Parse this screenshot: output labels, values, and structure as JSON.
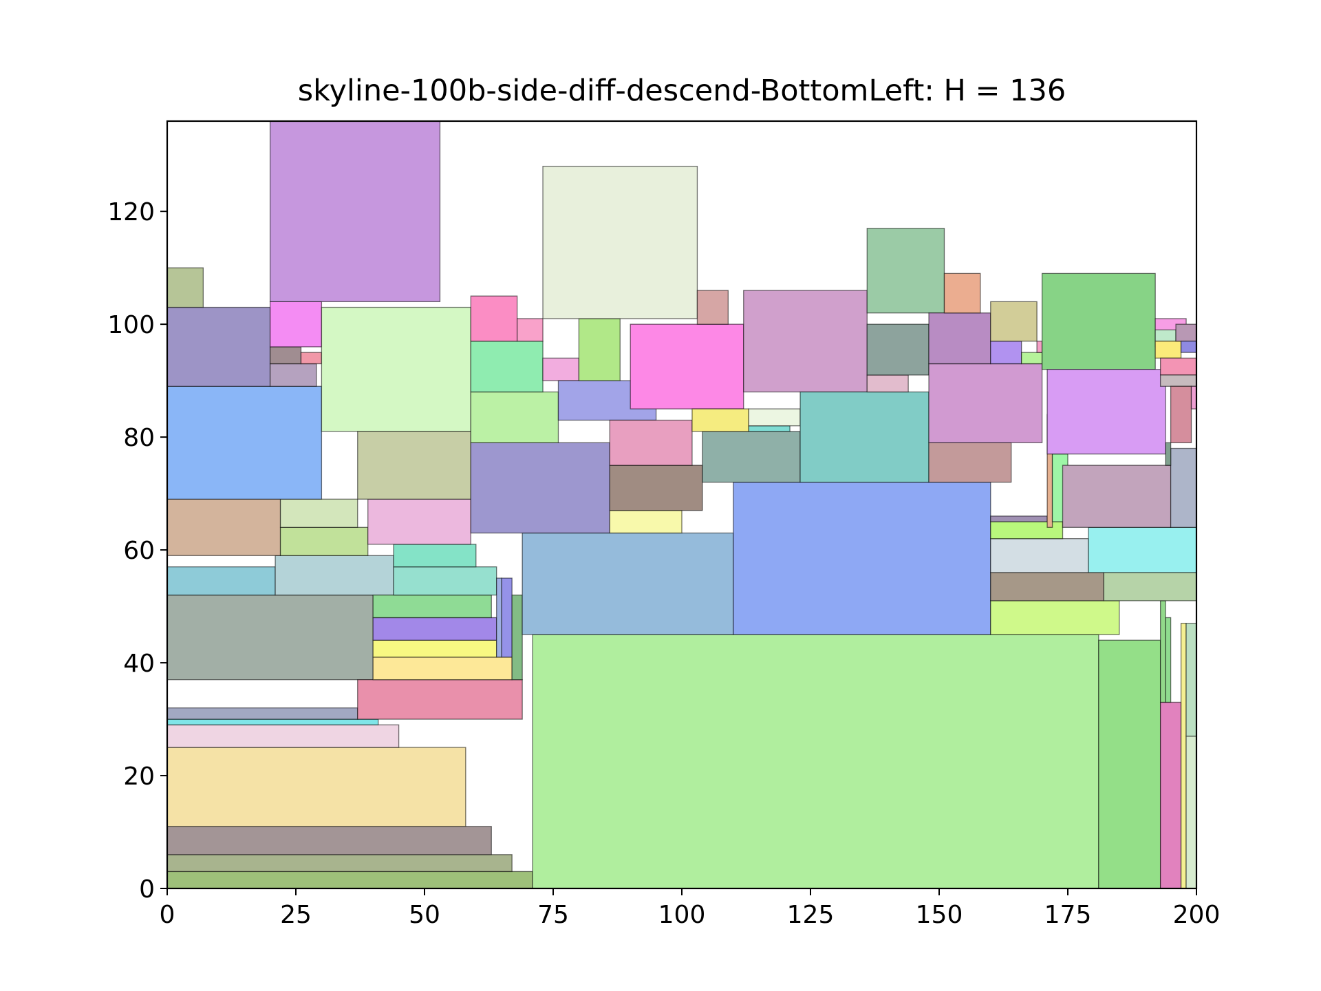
{
  "chart_data": {
    "type": "rectangle-packing",
    "title": "skyline-100b-side-diff-descend-BottomLeft: H = 136",
    "xlabel": "",
    "ylabel": "",
    "xlim": [
      0,
      200
    ],
    "ylim": [
      0,
      136
    ],
    "x_ticks": [
      0,
      25,
      50,
      75,
      100,
      125,
      150,
      175,
      200
    ],
    "y_ticks": [
      0,
      20,
      40,
      60,
      80,
      100,
      120
    ],
    "rects": [
      {
        "x": 0,
        "y": 0,
        "w": 71,
        "h": 3,
        "color": "#9ec07a"
      },
      {
        "x": 0,
        "y": 3,
        "w": 67,
        "h": 3,
        "color": "#a8b48e"
      },
      {
        "x": 0,
        "y": 6,
        "w": 63,
        "h": 5,
        "color": "#a39596"
      },
      {
        "x": 0,
        "y": 11,
        "w": 58,
        "h": 14,
        "color": "#f5e2a6"
      },
      {
        "x": 0,
        "y": 25,
        "w": 45,
        "h": 4,
        "color": "#efd5e3"
      },
      {
        "x": 0,
        "y": 29,
        "w": 41,
        "h": 1,
        "color": "#7fe5e8"
      },
      {
        "x": 0,
        "y": 30,
        "w": 37,
        "h": 2,
        "color": "#a2a8c2"
      },
      {
        "x": 0,
        "y": 37,
        "w": 40,
        "h": 15,
        "color": "#a2afa6"
      },
      {
        "x": 0,
        "y": 52,
        "w": 21,
        "h": 5,
        "color": "#8ecbd8"
      },
      {
        "x": 21,
        "y": 52,
        "w": 23,
        "h": 7,
        "color": "#b4d3d8"
      },
      {
        "x": 0,
        "y": 59,
        "w": 22,
        "h": 10,
        "color": "#d3b49c"
      },
      {
        "x": 22,
        "y": 59,
        "w": 17,
        "h": 5,
        "color": "#c1e19a"
      },
      {
        "x": 22,
        "y": 64,
        "w": 15,
        "h": 5,
        "color": "#d3e6bb"
      },
      {
        "x": 0,
        "y": 69,
        "w": 30,
        "h": 20,
        "color": "#8ab6f7"
      },
      {
        "x": 0,
        "y": 89,
        "w": 20,
        "h": 14,
        "color": "#9d94c6"
      },
      {
        "x": 0,
        "y": 103,
        "w": 7,
        "h": 7,
        "color": "#b6c597"
      },
      {
        "x": 20,
        "y": 89,
        "w": 9,
        "h": 4,
        "color": "#b5a2bf"
      },
      {
        "x": 20,
        "y": 93,
        "w": 6,
        "h": 3,
        "color": "#a08d91"
      },
      {
        "x": 26,
        "y": 93,
        "w": 4,
        "h": 2,
        "color": "#f198a8"
      },
      {
        "x": 20,
        "y": 96,
        "w": 10,
        "h": 8,
        "color": "#f48cf3"
      },
      {
        "x": 20,
        "y": 104,
        "w": 33,
        "h": 32,
        "color": "#c697de"
      },
      {
        "x": 30,
        "y": 81,
        "w": 29,
        "h": 22,
        "color": "#d4f8c4"
      },
      {
        "x": 37,
        "y": 30,
        "w": 32,
        "h": 7,
        "color": "#e990ab"
      },
      {
        "x": 40,
        "y": 37,
        "w": 27,
        "h": 4,
        "color": "#fde898"
      },
      {
        "x": 40,
        "y": 41,
        "w": 24,
        "h": 3,
        "color": "#f8f882"
      },
      {
        "x": 40,
        "y": 44,
        "w": 24,
        "h": 4,
        "color": "#a288e8"
      },
      {
        "x": 40,
        "y": 48,
        "w": 23,
        "h": 4,
        "color": "#8fdb95"
      },
      {
        "x": 44,
        "y": 52,
        "w": 20,
        "h": 5,
        "color": "#96e0cf"
      },
      {
        "x": 44,
        "y": 57,
        "w": 16,
        "h": 4,
        "color": "#84e3c7"
      },
      {
        "x": 39,
        "y": 61,
        "w": 20,
        "h": 8,
        "color": "#ecb8de"
      },
      {
        "x": 37,
        "y": 69,
        "w": 22,
        "h": 12,
        "color": "#c7cea6"
      },
      {
        "x": 64,
        "y": 41,
        "w": 1,
        "h": 14,
        "color": "#9fb0e3"
      },
      {
        "x": 65,
        "y": 41,
        "w": 2,
        "h": 14,
        "color": "#9592e9"
      },
      {
        "x": 67,
        "y": 37,
        "w": 2,
        "h": 15,
        "color": "#83bc85"
      },
      {
        "x": 71,
        "y": 0,
        "w": 110,
        "h": 45,
        "color": "#b0ee9e"
      },
      {
        "x": 69,
        "y": 45,
        "w": 41,
        "h": 18,
        "color": "#95bbdb"
      },
      {
        "x": 110,
        "y": 45,
        "w": 50,
        "h": 27,
        "color": "#8ea8f4"
      },
      {
        "x": 181,
        "y": 0,
        "w": 12,
        "h": 44,
        "color": "#94df88"
      },
      {
        "x": 193,
        "y": 0,
        "w": 4,
        "h": 33,
        "color": "#e182be"
      },
      {
        "x": 197,
        "y": 0,
        "w": 1,
        "h": 47,
        "color": "#f4f092"
      },
      {
        "x": 198,
        "y": 0,
        "w": 2,
        "h": 27,
        "color": "#d7eccf"
      },
      {
        "x": 198,
        "y": 27,
        "w": 2,
        "h": 20,
        "color": "#bbe0c2"
      },
      {
        "x": 193,
        "y": 33,
        "w": 1,
        "h": 18,
        "color": "#92d98a"
      },
      {
        "x": 194,
        "y": 33,
        "w": 1,
        "h": 15,
        "color": "#8fdc8f"
      },
      {
        "x": 160,
        "y": 45,
        "w": 25,
        "h": 6,
        "color": "#cff98a"
      },
      {
        "x": 160,
        "y": 51,
        "w": 22,
        "h": 5,
        "color": "#a69888"
      },
      {
        "x": 182,
        "y": 51,
        "w": 18,
        "h": 5,
        "color": "#b6d3a8"
      },
      {
        "x": 160,
        "y": 56,
        "w": 19,
        "h": 6,
        "color": "#d3dee4"
      },
      {
        "x": 179,
        "y": 56,
        "w": 21,
        "h": 8,
        "color": "#98f0ef"
      },
      {
        "x": 160,
        "y": 62,
        "w": 14,
        "h": 3,
        "color": "#b9f77c"
      },
      {
        "x": 160,
        "y": 65,
        "w": 11,
        "h": 1,
        "color": "#a090b3"
      },
      {
        "x": 171,
        "y": 64,
        "w": 1,
        "h": 20,
        "color": "#e6b190"
      },
      {
        "x": 172,
        "y": 65,
        "w": 3,
        "h": 12,
        "color": "#9ef6a7"
      },
      {
        "x": 174,
        "y": 64,
        "w": 21,
        "h": 11,
        "color": "#c2a4bc"
      },
      {
        "x": 195,
        "y": 64,
        "w": 5,
        "h": 14,
        "color": "#adb5c9"
      },
      {
        "x": 59,
        "y": 63,
        "w": 27,
        "h": 16,
        "color": "#9d97cf"
      },
      {
        "x": 59,
        "y": 79,
        "w": 17,
        "h": 9,
        "color": "#bbf1a5"
      },
      {
        "x": 59,
        "y": 88,
        "w": 14,
        "h": 9,
        "color": "#8fecb0"
      },
      {
        "x": 59,
        "y": 97,
        "w": 9,
        "h": 8,
        "color": "#fb8dc4"
      },
      {
        "x": 68,
        "y": 97,
        "w": 5,
        "h": 4,
        "color": "#f9a2ca"
      },
      {
        "x": 73,
        "y": 90,
        "w": 7,
        "h": 4,
        "color": "#f2addf"
      },
      {
        "x": 76,
        "y": 83,
        "w": 19,
        "h": 7,
        "color": "#a2a4e8"
      },
      {
        "x": 80,
        "y": 90,
        "w": 8,
        "h": 11,
        "color": "#b1e888"
      },
      {
        "x": 86,
        "y": 63,
        "w": 14,
        "h": 4,
        "color": "#f8f9ab"
      },
      {
        "x": 86,
        "y": 67,
        "w": 18,
        "h": 8,
        "color": "#a08c82"
      },
      {
        "x": 86,
        "y": 75,
        "w": 16,
        "h": 8,
        "color": "#e89fc0"
      },
      {
        "x": 90,
        "y": 85,
        "w": 22,
        "h": 15,
        "color": "#fd88e6"
      },
      {
        "x": 73,
        "y": 101,
        "w": 30,
        "h": 27,
        "color": "#e8f0dc"
      },
      {
        "x": 103,
        "y": 100,
        "w": 6,
        "h": 6,
        "color": "#d6a6a5"
      },
      {
        "x": 104,
        "y": 72,
        "w": 19,
        "h": 9,
        "color": "#8fb0a8"
      },
      {
        "x": 102,
        "y": 81,
        "w": 11,
        "h": 4,
        "color": "#f5ec80"
      },
      {
        "x": 113,
        "y": 81,
        "w": 8,
        "h": 1,
        "color": "#7fdcd3"
      },
      {
        "x": 113,
        "y": 82,
        "w": 10,
        "h": 3,
        "color": "#ecf6e2"
      },
      {
        "x": 112,
        "y": 88,
        "w": 24,
        "h": 18,
        "color": "#d0a0cc"
      },
      {
        "x": 123,
        "y": 72,
        "w": 25,
        "h": 16,
        "color": "#81ccc6"
      },
      {
        "x": 136,
        "y": 88,
        "w": 8,
        "h": 3,
        "color": "#e2bccd"
      },
      {
        "x": 136,
        "y": 91,
        "w": 12,
        "h": 9,
        "color": "#8da39d"
      },
      {
        "x": 136,
        "y": 102,
        "w": 15,
        "h": 15,
        "color": "#9bcba6"
      },
      {
        "x": 148,
        "y": 72,
        "w": 16,
        "h": 7,
        "color": "#c39a9a"
      },
      {
        "x": 148,
        "y": 79,
        "w": 22,
        "h": 14,
        "color": "#d19ad1"
      },
      {
        "x": 148,
        "y": 93,
        "w": 12,
        "h": 9,
        "color": "#b88cc3"
      },
      {
        "x": 151,
        "y": 102,
        "w": 7,
        "h": 7,
        "color": "#ebad90"
      },
      {
        "x": 160,
        "y": 93,
        "w": 6,
        "h": 4,
        "color": "#b192f0"
      },
      {
        "x": 166,
        "y": 93,
        "w": 4,
        "h": 2,
        "color": "#b6f39a"
      },
      {
        "x": 160,
        "y": 97,
        "w": 9,
        "h": 7,
        "color": "#d2cd98"
      },
      {
        "x": 169,
        "y": 95,
        "w": 1,
        "h": 2,
        "color": "#f4a0c6"
      },
      {
        "x": 170,
        "y": 92,
        "w": 22,
        "h": 17,
        "color": "#87d386"
      },
      {
        "x": 171,
        "y": 77,
        "w": 23,
        "h": 15,
        "color": "#d89cf4"
      },
      {
        "x": 192,
        "y": 96,
        "w": 6,
        "h": 5,
        "color": "#f79ee5"
      },
      {
        "x": 192,
        "y": 97,
        "w": 4,
        "h": 2,
        "color": "#bfe9cb"
      },
      {
        "x": 192,
        "y": 94,
        "w": 5,
        "h": 3,
        "color": "#fbeb7a"
      },
      {
        "x": 196,
        "y": 97,
        "w": 4,
        "h": 3,
        "color": "#b898b4"
      },
      {
        "x": 197,
        "y": 95,
        "w": 3,
        "h": 2,
        "color": "#8f8ae3"
      },
      {
        "x": 193,
        "y": 91,
        "w": 7,
        "h": 3,
        "color": "#f394b4"
      },
      {
        "x": 193,
        "y": 89,
        "w": 7,
        "h": 2,
        "color": "#c7bbbe"
      },
      {
        "x": 195,
        "y": 79,
        "w": 4,
        "h": 10,
        "color": "#d58e9d"
      },
      {
        "x": 194,
        "y": 75,
        "w": 1,
        "h": 4,
        "color": "#7fa08e"
      },
      {
        "x": 199,
        "y": 85,
        "w": 1,
        "h": 4,
        "color": "#ee9fd2"
      }
    ]
  }
}
